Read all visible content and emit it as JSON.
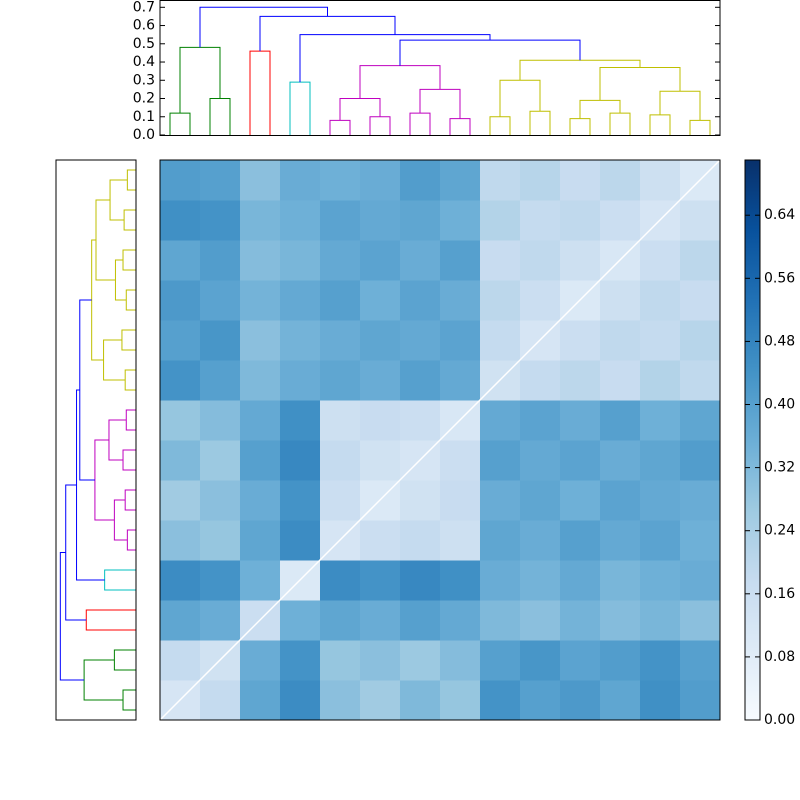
{
  "chart_data": {
    "type": "clustered-heatmap",
    "colormap": "Blues",
    "clim": [
      0,
      0.71
    ],
    "colorbar_ticks": [
      {
        "value": 0,
        "label": "0.00"
      },
      {
        "value": 0.08,
        "label": "0.08"
      },
      {
        "value": 0.16,
        "label": "0.16"
      },
      {
        "value": 0.24,
        "label": "0.24"
      },
      {
        "value": 0.32,
        "label": "0.32"
      },
      {
        "value": 0.4,
        "label": "0.40"
      },
      {
        "value": 0.48,
        "label": "0.48"
      },
      {
        "value": 0.56,
        "label": "0.56"
      },
      {
        "value": 0.64,
        "label": "0.64"
      }
    ],
    "matrix": [
      [
        0.12,
        0.18,
        0.38,
        0.46,
        0.3,
        0.26,
        0.32,
        0.28,
        0.44,
        0.4,
        0.42,
        0.38,
        0.45,
        0.41
      ],
      [
        0.18,
        0.14,
        0.36,
        0.44,
        0.28,
        0.3,
        0.27,
        0.31,
        0.4,
        0.43,
        0.39,
        0.41,
        0.44,
        0.4
      ],
      [
        0.38,
        0.36,
        0.16,
        0.35,
        0.38,
        0.36,
        0.4,
        0.37,
        0.32,
        0.3,
        0.34,
        0.31,
        0.33,
        0.3
      ],
      [
        0.46,
        0.44,
        0.35,
        0.1,
        0.46,
        0.44,
        0.47,
        0.45,
        0.36,
        0.34,
        0.37,
        0.33,
        0.35,
        0.36
      ],
      [
        0.3,
        0.28,
        0.38,
        0.46,
        0.12,
        0.16,
        0.18,
        0.15,
        0.38,
        0.36,
        0.4,
        0.37,
        0.39,
        0.35
      ],
      [
        0.26,
        0.3,
        0.36,
        0.44,
        0.16,
        0.1,
        0.14,
        0.17,
        0.36,
        0.38,
        0.35,
        0.39,
        0.37,
        0.36
      ],
      [
        0.32,
        0.27,
        0.4,
        0.47,
        0.18,
        0.14,
        0.12,
        0.16,
        0.4,
        0.37,
        0.39,
        0.36,
        0.38,
        0.41
      ],
      [
        0.28,
        0.31,
        0.37,
        0.45,
        0.15,
        0.17,
        0.16,
        0.11,
        0.37,
        0.39,
        0.36,
        0.4,
        0.35,
        0.38
      ],
      [
        0.44,
        0.4,
        0.32,
        0.36,
        0.38,
        0.36,
        0.4,
        0.37,
        0.14,
        0.18,
        0.2,
        0.17,
        0.22,
        0.19
      ],
      [
        0.4,
        0.43,
        0.3,
        0.34,
        0.36,
        0.38,
        0.37,
        0.39,
        0.18,
        0.12,
        0.16,
        0.19,
        0.18,
        0.21
      ],
      [
        0.42,
        0.39,
        0.34,
        0.37,
        0.4,
        0.35,
        0.39,
        0.36,
        0.2,
        0.16,
        0.1,
        0.15,
        0.19,
        0.17
      ],
      [
        0.38,
        0.41,
        0.31,
        0.33,
        0.37,
        0.39,
        0.36,
        0.4,
        0.17,
        0.19,
        0.15,
        0.11,
        0.16,
        0.2
      ],
      [
        0.45,
        0.44,
        0.33,
        0.35,
        0.39,
        0.37,
        0.38,
        0.35,
        0.22,
        0.18,
        0.19,
        0.16,
        0.12,
        0.15
      ],
      [
        0.41,
        0.4,
        0.3,
        0.36,
        0.35,
        0.36,
        0.41,
        0.38,
        0.19,
        0.21,
        0.17,
        0.2,
        0.15,
        0.1
      ]
    ],
    "dendrogram": {
      "ylim": [
        0,
        0.74
      ],
      "yticks": [
        {
          "value": 0,
          "label": "0.0"
        },
        {
          "value": 0.1,
          "label": "0.1"
        },
        {
          "value": 0.2,
          "label": "0.2"
        },
        {
          "value": 0.3,
          "label": "0.3"
        },
        {
          "value": 0.4,
          "label": "0.4"
        },
        {
          "value": 0.5,
          "label": "0.5"
        },
        {
          "value": 0.6,
          "label": "0.6"
        },
        {
          "value": 0.7,
          "label": "0.7"
        }
      ],
      "links": [
        {
          "left": 0,
          "right": 1,
          "height": 0.12,
          "color": "#008000"
        },
        {
          "left": 2,
          "right": 3,
          "height": 0.2,
          "color": "#008000"
        },
        {
          "left": 28,
          "right": 29,
          "height": 0.48,
          "color": "#008000"
        },
        {
          "left": 4,
          "right": 5,
          "height": 0.46,
          "color": "#ff0000"
        },
        {
          "left": 6,
          "right": 7,
          "height": 0.29,
          "color": "#00bfbf"
        },
        {
          "left": 8,
          "right": 9,
          "height": 0.08,
          "color": "#bf00bf"
        },
        {
          "left": 10,
          "right": 11,
          "height": 0.1,
          "color": "#bf00bf"
        },
        {
          "left": 33,
          "right": 34,
          "height": 0.2,
          "color": "#bf00bf"
        },
        {
          "left": 12,
          "right": 13,
          "height": 0.12,
          "color": "#bf00bf"
        },
        {
          "left": 14,
          "right": 15,
          "height": 0.09,
          "color": "#bf00bf"
        },
        {
          "left": 36,
          "right": 37,
          "height": 0.25,
          "color": "#bf00bf"
        },
        {
          "left": 35,
          "right": 38,
          "height": 0.38,
          "color": "#bf00bf"
        },
        {
          "left": 16,
          "right": 17,
          "height": 0.1,
          "color": "#bfbf00"
        },
        {
          "left": 18,
          "right": 19,
          "height": 0.13,
          "color": "#bfbf00"
        },
        {
          "left": 40,
          "right": 41,
          "height": 0.3,
          "color": "#bfbf00"
        },
        {
          "left": 20,
          "right": 21,
          "height": 0.09,
          "color": "#bfbf00"
        },
        {
          "left": 22,
          "right": 23,
          "height": 0.12,
          "color": "#bfbf00"
        },
        {
          "left": 43,
          "right": 44,
          "height": 0.19,
          "color": "#bfbf00"
        },
        {
          "left": 24,
          "right": 25,
          "height": 0.11,
          "color": "#bfbf00"
        },
        {
          "left": 26,
          "right": 27,
          "height": 0.08,
          "color": "#bfbf00"
        },
        {
          "left": 46,
          "right": 47,
          "height": 0.24,
          "color": "#bfbf00"
        },
        {
          "left": 45,
          "right": 48,
          "height": 0.37,
          "color": "#bfbf00"
        },
        {
          "left": 42,
          "right": 49,
          "height": 0.41,
          "color": "#bfbf00"
        },
        {
          "left": 39,
          "right": 50,
          "height": 0.52,
          "color": "#0000ff"
        },
        {
          "left": 32,
          "right": 51,
          "height": 0.55,
          "color": "#0000ff"
        },
        {
          "left": 31,
          "right": 52,
          "height": 0.65,
          "color": "#0000ff"
        },
        {
          "left": 30,
          "right": 53,
          "height": 0.7,
          "color": "#0000ff"
        }
      ]
    }
  }
}
